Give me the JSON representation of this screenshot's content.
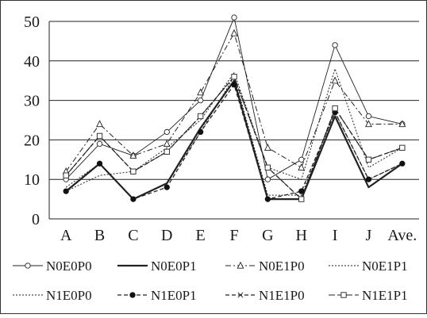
{
  "chart_data": {
    "type": "line",
    "title": "",
    "xlabel": "",
    "ylabel": "",
    "categories": [
      "A",
      "B",
      "C",
      "D",
      "E",
      "F",
      "G",
      "H",
      "I",
      "J",
      "Ave."
    ],
    "ylim": [
      0,
      50
    ],
    "yticks": [
      "0",
      "10",
      "20",
      "30",
      "40",
      "50"
    ],
    "grid": "horizontal",
    "legend_position": "bottom",
    "series": [
      {
        "name": "N0E0P0",
        "style": "thin-solid",
        "marker": "open-circle",
        "values": [
          10,
          19,
          16,
          22,
          30,
          51,
          10,
          15,
          44,
          26,
          24
        ]
      },
      {
        "name": "N0E0P1",
        "style": "thick-solid",
        "marker": "none",
        "values": [
          7,
          14,
          5,
          9,
          23,
          35,
          5,
          5,
          26,
          8,
          14
        ]
      },
      {
        "name": "N0E1P0",
        "style": "dash-dot",
        "marker": "open-triangle",
        "values": [
          12,
          24,
          16,
          19,
          32,
          47,
          18,
          13,
          35,
          24,
          24
        ]
      },
      {
        "name": "N0E1P1",
        "style": "dotted",
        "marker": "none",
        "values": [
          7,
          11,
          12,
          18,
          25,
          37,
          13,
          10,
          38,
          13,
          18
        ]
      },
      {
        "name": "N1E0P0",
        "style": "dotted",
        "marker": "none",
        "values": [
          8,
          14,
          5,
          9,
          22,
          36,
          6,
          6,
          27,
          10,
          14
        ]
      },
      {
        "name": "N1E0P1",
        "style": "dashed",
        "marker": "filled-circle",
        "values": [
          7,
          14,
          5,
          8,
          22,
          34,
          5,
          7,
          27,
          10,
          14
        ]
      },
      {
        "name": "N1E1P0",
        "style": "dashed",
        "marker": "star",
        "values": [
          11,
          21,
          12,
          17,
          26,
          36,
          13,
          5,
          28,
          15,
          18
        ]
      },
      {
        "name": "N1E1P1",
        "style": "long-dash",
        "marker": "open-square",
        "values": [
          11,
          21,
          12,
          17,
          26,
          36,
          13,
          5,
          28,
          15,
          18
        ]
      }
    ]
  }
}
